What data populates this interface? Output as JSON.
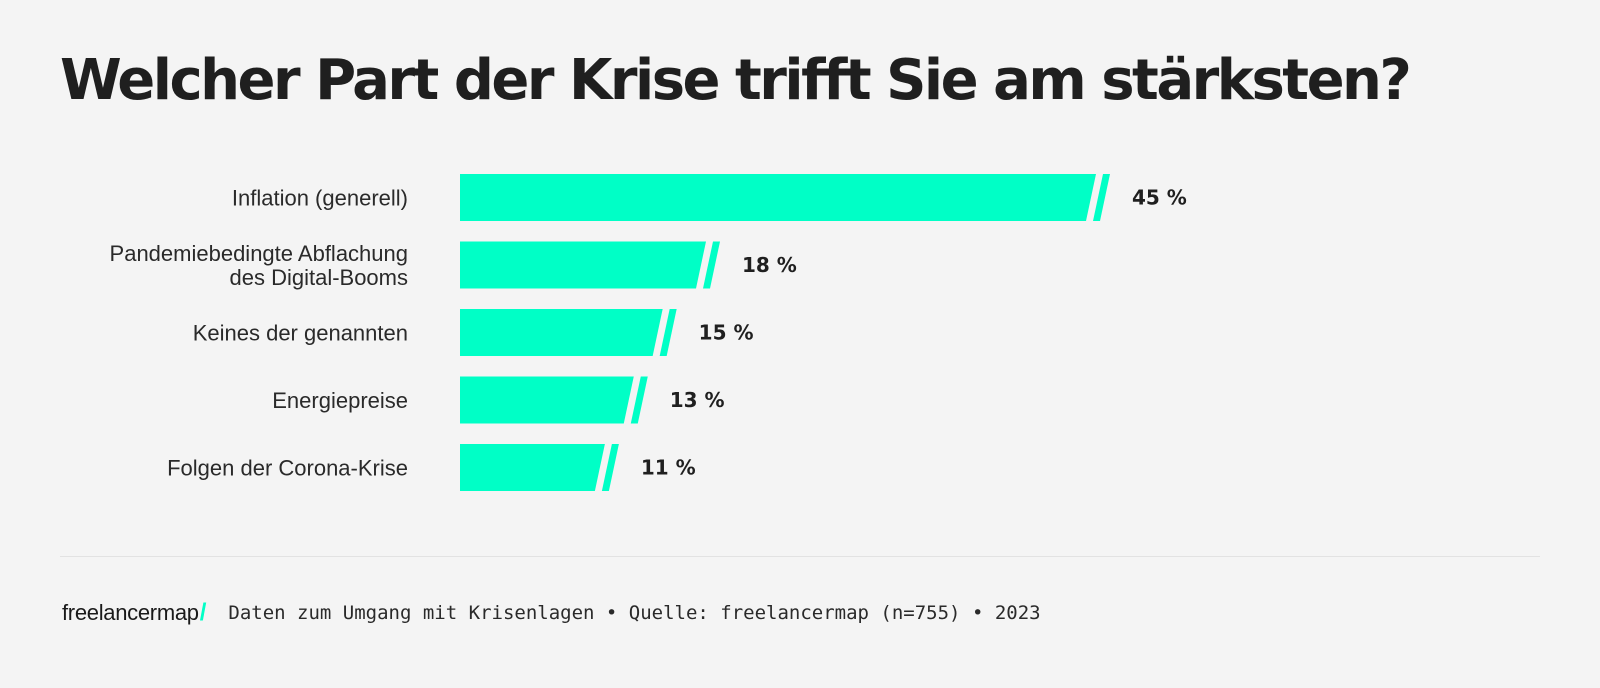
{
  "title": "Welcher Part der Krise trifft Sie am stärksten?",
  "colors": {
    "bar": "#00ffc6",
    "text": "#1f1f1f",
    "background": "#f4f4f4"
  },
  "chart_data": {
    "type": "bar",
    "orientation": "horizontal",
    "title": "Welcher Part der Krise trifft Sie am stärksten?",
    "categories": [
      [
        "Inflation (generell)"
      ],
      [
        "Pandemiebedingte Abflachung",
        "des Digital-Booms"
      ],
      [
        "Keines der genannten"
      ],
      [
        "Energiepreise"
      ],
      [
        "Folgen der Corona-Krise"
      ]
    ],
    "values": [
      45,
      18,
      15,
      13,
      11
    ],
    "value_labels": [
      "45 %",
      "18 %",
      "15 %",
      "13 %",
      "11 %"
    ],
    "unit": "%",
    "xlim": [
      0,
      45
    ],
    "grid": false
  },
  "footer": {
    "brand": "freelancermap",
    "brand_slash": "/",
    "text": "Daten zum Umgang mit Krisenlagen • Quelle: freelancermap (n=755) • 2023"
  }
}
